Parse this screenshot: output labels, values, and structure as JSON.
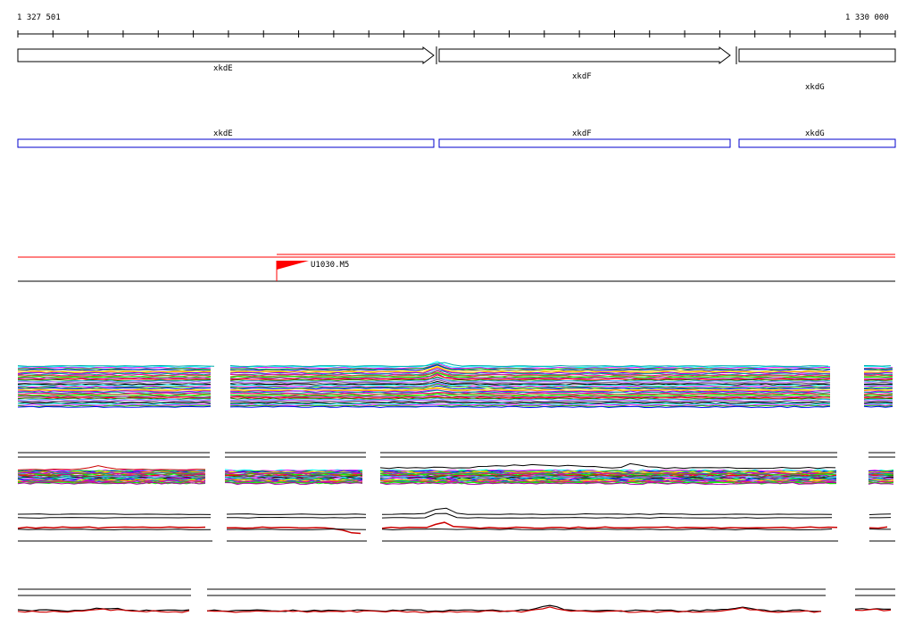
{
  "ruler": {
    "start_label": "1 327 501",
    "end_label": "1 330 000"
  },
  "genes": [
    {
      "name": "xkdE",
      "direction": "forward"
    },
    {
      "name": "xkdF",
      "direction": "forward"
    },
    {
      "name": "xkdG",
      "direction": "forward"
    }
  ],
  "cds_track": {
    "labels": [
      "xkdE",
      "xkdF",
      "xkdG"
    ],
    "color": "#0000cc"
  },
  "tss_track": {
    "label": "U1030.M5",
    "color": "#ff0000"
  },
  "profile_palette": [
    "#00ffff",
    "#ff00ff",
    "#00cc00",
    "#0000ff",
    "#ffff00",
    "#ff8800",
    "#8800ff",
    "#00aa88",
    "#ff0088",
    "#888800",
    "#00ff00",
    "#aa00aa",
    "#ff0000",
    "#008800",
    "#44aaff",
    "#cc66ff",
    "#666666",
    "#000000"
  ],
  "colors": {
    "forward": "#000000",
    "reverse": "#cc0000"
  }
}
